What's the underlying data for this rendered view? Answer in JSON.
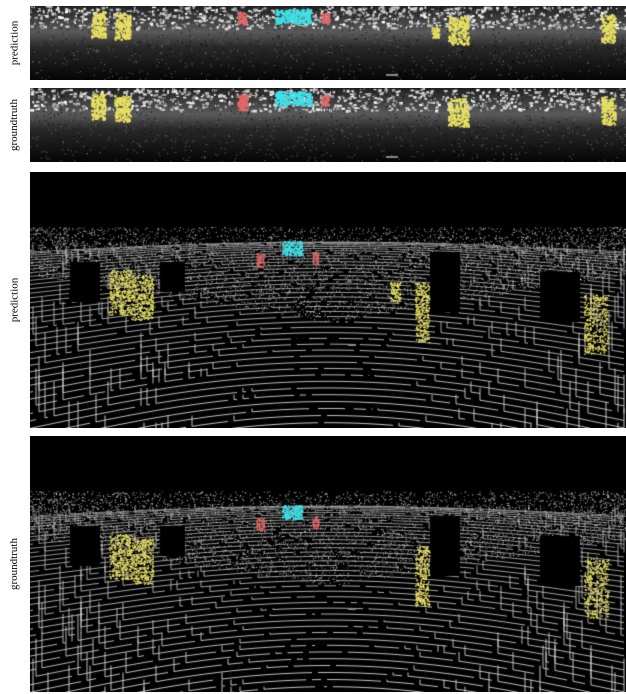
{
  "figure": {
    "panels": [
      {
        "id": "range-view-prediction",
        "label": "prediction",
        "kind": "range"
      },
      {
        "id": "range-view-groundtruth",
        "label": "groundtruth",
        "kind": "range"
      },
      {
        "id": "perspective-view-prediction",
        "label": "prediction",
        "kind": "perspective"
      },
      {
        "id": "perspective-view-groundtruth",
        "label": "groundtruth",
        "kind": "perspective"
      }
    ],
    "colors": {
      "background": "#000000",
      "points": "#d0d0d0",
      "person": "#e8e060",
      "car": "#40e0e8",
      "cyclist": "#e06868"
    }
  }
}
